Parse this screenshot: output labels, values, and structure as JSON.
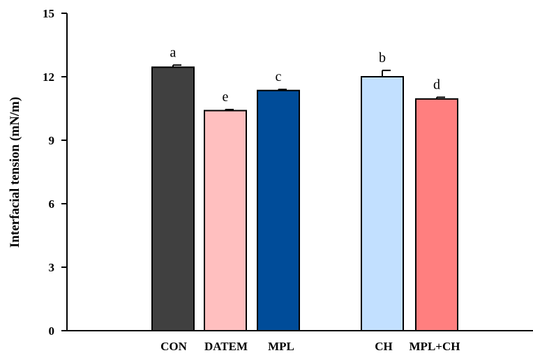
{
  "chart_data": {
    "type": "bar",
    "title": "",
    "xlabel": "",
    "ylabel": "Interfacial tension (mN/m)",
    "ylim": [
      0,
      15
    ],
    "yticks": [
      0,
      3,
      6,
      9,
      12,
      15
    ],
    "grid": false,
    "legend": "none",
    "categories": [
      "CON",
      "DATEM",
      "MPL",
      "CH",
      "MPL+CH"
    ],
    "values": [
      12.45,
      10.4,
      11.35,
      12.0,
      10.95
    ],
    "errors": [
      0.1,
      0.05,
      0.05,
      0.3,
      0.08
    ],
    "significance_letters": [
      "a",
      "e",
      "c",
      "b",
      "d"
    ],
    "colors": [
      "#404040",
      "#ffbfbf",
      "#004c99",
      "#c2e0ff",
      "#ff7f7f"
    ]
  }
}
